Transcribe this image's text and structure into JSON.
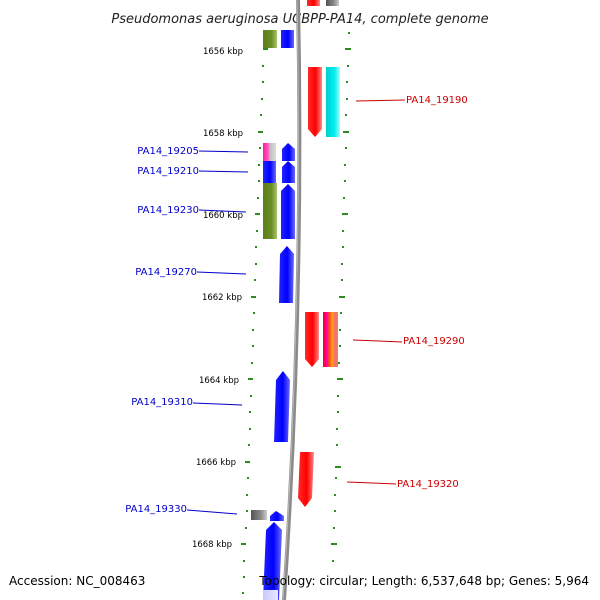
{
  "title": "Pseudomonas aeruginosa UCBPP-PA14, complete genome",
  "accession": "Accession: NC_008463",
  "topology": "Topology: circular; Length: 6,537,648 bp; Genes: 5,964",
  "kbp_ticks": [
    "1656 kbp",
    "1658 kbp",
    "1660 kbp",
    "1662 kbp",
    "1664 kbp",
    "1666 kbp",
    "1668 kbp"
  ],
  "genes_left": [
    "PA14_19205",
    "PA14_19210",
    "PA14_19230",
    "PA14_19270",
    "PA14_19310",
    "PA14_19330"
  ],
  "genes_right": [
    "PA14_19190",
    "PA14_19290",
    "PA14_19320"
  ],
  "colors": {
    "left_label": "#0000cc",
    "right_label": "#cc0000",
    "forward_strand": "#0000ff",
    "reverse_strand": "#ff0000",
    "feature_olive": "#6b8e23",
    "feature_cyan": "#00e5e5",
    "axis": "#8a8a8a",
    "tick": "#2e8b22"
  }
}
